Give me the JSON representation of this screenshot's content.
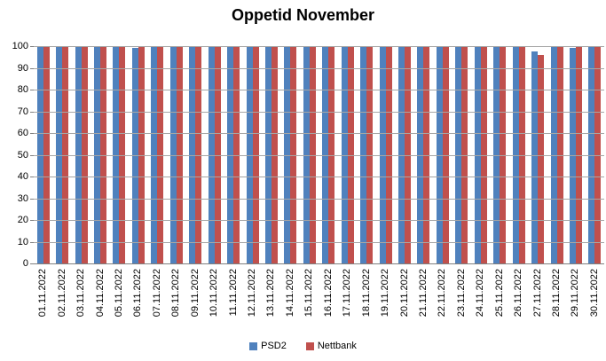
{
  "title": "Oppetid November",
  "colors": {
    "psd2": "#4F81BD",
    "nettbank": "#C0504D",
    "gridline": "#A6A6A6",
    "axis": "#808080",
    "text": "#000000",
    "background": "#FFFFFF"
  },
  "legend": {
    "items": [
      {
        "label": "PSD2",
        "color": "#4F81BD"
      },
      {
        "label": "Nettbank",
        "color": "#C0504D"
      }
    ]
  },
  "y_axis": {
    "tick_labels": [
      "100",
      "90",
      "80",
      "70",
      "60",
      "50",
      "40",
      "30",
      "20",
      "10",
      "0"
    ]
  },
  "chart_data": {
    "type": "bar",
    "title": "Oppetid November",
    "categories": [
      "01.11.2022",
      "02.11.2022",
      "03.11.2022",
      "04.11.2022",
      "05.11.2022",
      "06.11.2022",
      "07.11.2022",
      "08.11.2022",
      "09.11.2022",
      "10.11.2022",
      "11.11.2022",
      "12.11.2022",
      "13.11.2022",
      "14.11.2022",
      "15.11.2022",
      "16.11.2022",
      "17.11.2022",
      "18.11.2022",
      "19.11.2022",
      "20.11.2022",
      "21.11.2022",
      "22.11.2022",
      "23.11.2022",
      "24.11.2022",
      "25.11.2022",
      "26.11.2022",
      "27.11.2022",
      "28.11.2022",
      "29.11.2022",
      "30.11.2022"
    ],
    "series": [
      {
        "name": "PSD2",
        "color": "#4F81BD",
        "values": [
          100,
          100,
          100,
          100,
          100,
          99,
          100,
          100,
          100,
          100,
          100,
          100,
          100,
          100,
          100,
          100,
          100,
          100,
          100,
          100,
          100,
          100,
          100,
          100,
          100,
          100,
          97.5,
          100,
          99,
          100
        ]
      },
      {
        "name": "Nettbank",
        "color": "#C0504D",
        "values": [
          100,
          100,
          100,
          100,
          100,
          99.5,
          100,
          100,
          100,
          100,
          100,
          100,
          100,
          100,
          100,
          100,
          100,
          100,
          100,
          100,
          100,
          100,
          100,
          100,
          100,
          100,
          96,
          100,
          100,
          100
        ]
      }
    ],
    "xlabel": "",
    "ylabel": "",
    "ylim": [
      0,
      100
    ],
    "ytick_interval": 10,
    "grid": true,
    "legend_position": "bottom"
  }
}
